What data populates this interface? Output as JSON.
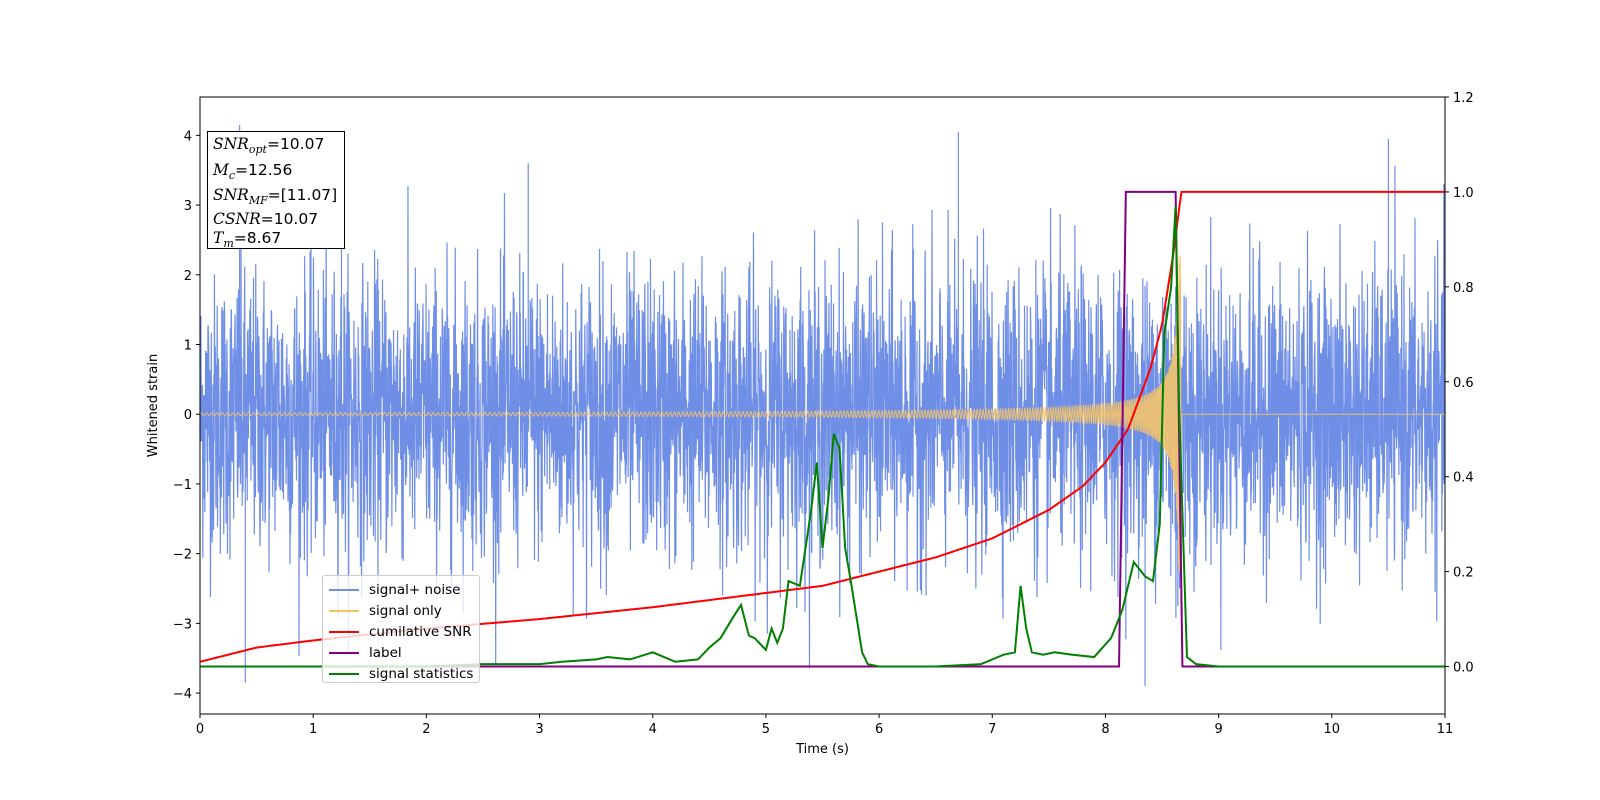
{
  "chart_data": {
    "type": "line",
    "xlabel": "Time (s)",
    "ylabel": "Whitened strain",
    "xlim": [
      0,
      11
    ],
    "ylim": [
      -4.3,
      4.55
    ],
    "y2lim": [
      -0.1,
      1.2
    ],
    "x_ticks": [
      "0",
      "1",
      "2",
      "3",
      "4",
      "5",
      "6",
      "7",
      "8",
      "9",
      "10",
      "11"
    ],
    "y_ticks": [
      "−4",
      "−3",
      "−2",
      "−1",
      "0",
      "1",
      "2",
      "3",
      "4"
    ],
    "y2_ticks": [
      "0.0",
      "0.2",
      "0.4",
      "0.6",
      "0.8",
      "1.0",
      "1.2"
    ],
    "info_box": {
      "snr_opt": "=10.07",
      "mc": "=12.56",
      "snr_mf": "=[11.07]",
      "csnr": "=10.07",
      "tm": "=8.67"
    },
    "series": [
      {
        "name": "signal+ noise",
        "color": "#6f8ee6",
        "axis": "left",
        "description_of_spread": "white noise with std 1, excursions to about ±4",
        "std": 1.0,
        "peaks": [
          {
            "x": 0.35,
            "y": 4.15
          },
          {
            "x": 0.4,
            "y": -3.85
          },
          {
            "x": 1.25,
            "y": 4.0
          },
          {
            "x": 2.9,
            "y": 3.6
          },
          {
            "x": 6.7,
            "y": 4.05
          },
          {
            "x": 8.35,
            "y": -3.9
          },
          {
            "x": 10.5,
            "y": 3.95
          }
        ]
      },
      {
        "name": "signal only",
        "color": "#f5c46a",
        "axis": "left",
        "chirp_start": 0,
        "merger_time": 8.67,
        "amplitude_start": 0.02,
        "amplitude_end": 2.3
      },
      {
        "name": "cumilative SNR",
        "color": "#ff0000",
        "axis": "right",
        "x": [
          0,
          0.5,
          1,
          2,
          3,
          4,
          5,
          5.5,
          6,
          6.5,
          7,
          7.5,
          7.8,
          8.0,
          8.2,
          8.4,
          8.5,
          8.6,
          8.67,
          9,
          10,
          11
        ],
        "y": [
          0.01,
          0.04,
          0.055,
          0.08,
          0.1,
          0.125,
          0.155,
          0.17,
          0.2,
          0.23,
          0.27,
          0.33,
          0.38,
          0.43,
          0.5,
          0.63,
          0.72,
          0.87,
          1.0,
          1.0,
          1.0,
          1.0
        ]
      },
      {
        "name": "label",
        "color": "#800080",
        "axis": "right",
        "x": [
          0,
          8.12,
          8.18,
          8.62,
          8.68,
          11
        ],
        "y": [
          0,
          0,
          1,
          1,
          0,
          0
        ]
      },
      {
        "name": "signal statistics",
        "color": "#008000",
        "axis": "right",
        "x": [
          0,
          1,
          2,
          2.5,
          3,
          3.2,
          3.5,
          3.6,
          3.8,
          4.0,
          4.1,
          4.2,
          4.4,
          4.5,
          4.6,
          4.7,
          4.78,
          4.85,
          4.9,
          5.0,
          5.05,
          5.1,
          5.15,
          5.2,
          5.3,
          5.4,
          5.45,
          5.5,
          5.55,
          5.6,
          5.65,
          5.7,
          5.75,
          5.85,
          5.9,
          6.0,
          6.5,
          6.9,
          7.1,
          7.2,
          7.25,
          7.3,
          7.35,
          7.45,
          7.55,
          7.7,
          7.9,
          8.05,
          8.15,
          8.25,
          8.35,
          8.42,
          8.48,
          8.52,
          8.58,
          8.62,
          8.65,
          8.72,
          8.8,
          9.0,
          10,
          11
        ],
        "y": [
          0,
          0,
          0,
          0.005,
          0.005,
          0.01,
          0.015,
          0.02,
          0.015,
          0.03,
          0.02,
          0.01,
          0.015,
          0.04,
          0.06,
          0.1,
          0.13,
          0.065,
          0.06,
          0.035,
          0.08,
          0.05,
          0.08,
          0.18,
          0.17,
          0.33,
          0.43,
          0.25,
          0.35,
          0.49,
          0.46,
          0.25,
          0.18,
          0.03,
          0.005,
          0,
          0,
          0.005,
          0.025,
          0.03,
          0.17,
          0.08,
          0.03,
          0.025,
          0.03,
          0.025,
          0.02,
          0.06,
          0.12,
          0.22,
          0.19,
          0.18,
          0.3,
          0.7,
          0.8,
          0.97,
          0.55,
          0.02,
          0.005,
          0,
          0,
          0
        ]
      }
    ]
  }
}
